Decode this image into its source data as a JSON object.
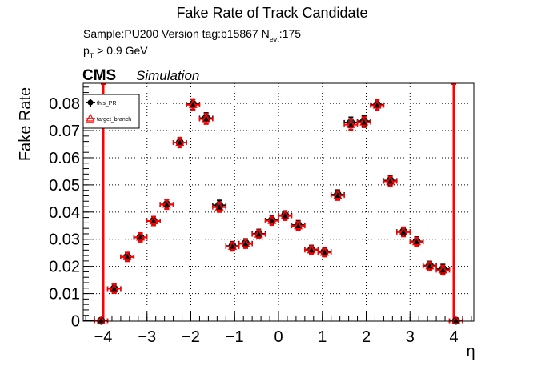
{
  "chart_data": {
    "type": "scatter",
    "title": "Fake Rate of Track Candidate",
    "subtitle_lines": [
      {
        "prefix": "Sample:PU200   Version tag:b15867  N",
        "sub": "evt",
        "suffix": ":175"
      },
      {
        "prefix": "p",
        "sub": "T",
        "suffix": " > 0.9 GeV"
      }
    ],
    "cms_label": "CMS",
    "cms_extra": "Simulation",
    "xlabel": "η",
    "ylabel": "Fake Rate",
    "xlim": [
      -4.45,
      4.45
    ],
    "ylim": [
      0,
      0.0875
    ],
    "xticks": [
      -4,
      -3,
      -2,
      -1,
      0,
      1,
      2,
      3,
      4
    ],
    "xtick_labels": [
      "−4",
      "−3",
      "−2",
      "−1",
      "0",
      "1",
      "2",
      "3",
      "4"
    ],
    "yticks": [
      0,
      0.01,
      0.02,
      0.03,
      0.04,
      0.05,
      0.06,
      0.07,
      0.08
    ],
    "ytick_labels": [
      "0",
      "0.01",
      "0.02",
      "0.03",
      "0.04",
      "0.05",
      "0.06",
      "0.07",
      "0.08"
    ],
    "grid": true,
    "legend_position": "upper-left",
    "vertical_lines": [
      {
        "x": -4.0,
        "color": "#ff0000"
      },
      {
        "x": 4.0,
        "color": "#ff0000"
      }
    ],
    "x_bin_half_width": 0.15,
    "x": [
      -4.05,
      -3.75,
      -3.45,
      -3.15,
      -2.85,
      -2.55,
      -2.25,
      -1.95,
      -1.65,
      -1.35,
      -1.05,
      -0.75,
      -0.45,
      -0.15,
      0.15,
      0.45,
      0.75,
      1.05,
      1.35,
      1.65,
      1.95,
      2.25,
      2.55,
      2.85,
      3.15,
      3.45,
      3.75,
      4.05
    ],
    "series": [
      {
        "name": "this_PR",
        "color": "#000000",
        "marker": "filled-circle",
        "values": [
          0.0,
          0.0118,
          0.0235,
          0.0307,
          0.0367,
          0.0428,
          0.0656,
          0.0797,
          0.0746,
          0.0425,
          0.0275,
          0.0285,
          0.032,
          0.037,
          0.0388,
          0.0352,
          0.0262,
          0.0254,
          0.0464,
          0.073,
          0.0735,
          0.0795,
          0.0516,
          0.0328,
          0.0292,
          0.0203,
          0.019,
          0.0
        ],
        "errors": [
          0.0,
          0.001,
          0.001,
          0.001,
          0.001,
          0.0011,
          0.0012,
          0.0013,
          0.0013,
          0.0012,
          0.001,
          0.001,
          0.001,
          0.001,
          0.001,
          0.001,
          0.0009,
          0.0009,
          0.0011,
          0.0013,
          0.0013,
          0.0013,
          0.0012,
          0.001,
          0.001,
          0.0009,
          0.0011,
          0.0
        ]
      },
      {
        "name": "target_branch",
        "color": "#ff0000",
        "marker": "open-triangle",
        "values": [
          0.0,
          0.0118,
          0.0235,
          0.0307,
          0.0367,
          0.0428,
          0.0656,
          0.0795,
          0.0743,
          0.0418,
          0.0273,
          0.0283,
          0.0318,
          0.0368,
          0.0386,
          0.0349,
          0.026,
          0.0251,
          0.0461,
          0.0722,
          0.0731,
          0.0793,
          0.0513,
          0.0326,
          0.029,
          0.0201,
          0.0186,
          0.0
        ],
        "errors": [
          0.0,
          0.001,
          0.001,
          0.001,
          0.001,
          0.0011,
          0.0012,
          0.0013,
          0.0013,
          0.0012,
          0.001,
          0.001,
          0.001,
          0.001,
          0.001,
          0.001,
          0.0009,
          0.0009,
          0.0011,
          0.0013,
          0.0013,
          0.0013,
          0.0012,
          0.001,
          0.001,
          0.0009,
          0.0011,
          0.0
        ]
      }
    ]
  }
}
